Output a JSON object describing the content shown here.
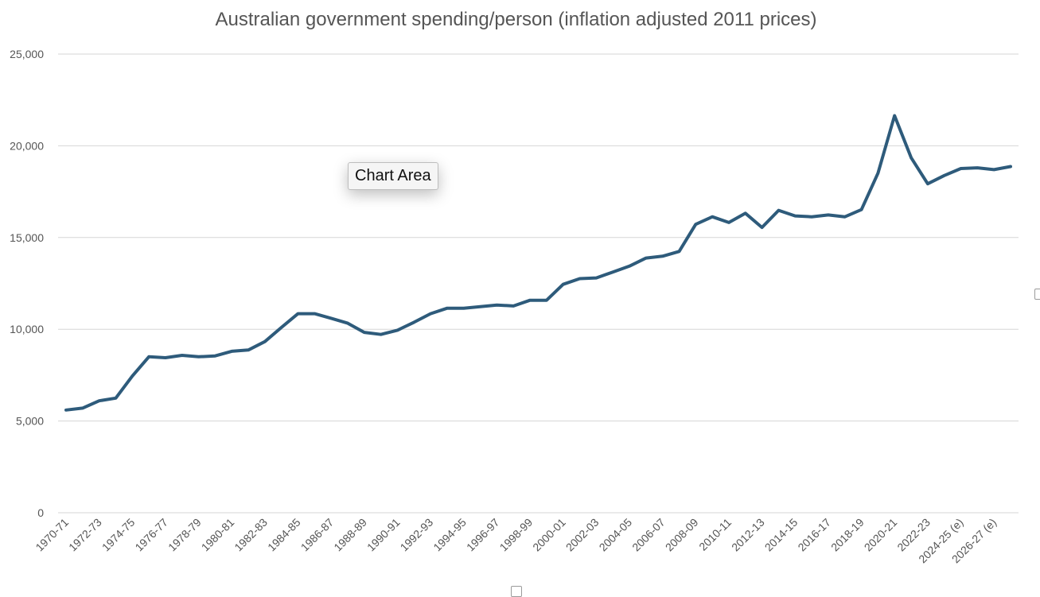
{
  "tooltip": "Chart Area",
  "colors": {
    "line": "#2e5b7b",
    "grid": "#d6d6d6",
    "text": "#555555"
  },
  "chart_data": {
    "type": "line",
    "title": "Australian government spending/person (inflation adjusted 2011 prices)",
    "xlabel": "",
    "ylabel": "",
    "ylim": [
      0,
      25000
    ],
    "yticks": [
      0,
      5000,
      10000,
      15000,
      20000,
      25000
    ],
    "ytick_labels": [
      "0",
      "5,000",
      "10,000",
      "15,000",
      "20,000",
      "25,000"
    ],
    "xtick_labels": [
      "1970-71",
      "1972-73",
      "1974-75",
      "1976-77",
      "1978-79",
      "1980-81",
      "1982-83",
      "1984-85",
      "1986-87",
      "1988-89",
      "1990-91",
      "1992-93",
      "1994-95",
      "1996-97",
      "1998-99",
      "2000-01",
      "2002-03",
      "2004-05",
      "2006-07",
      "2008-09",
      "2010-11",
      "2012-13",
      "2014-15",
      "2016-17",
      "2018-19",
      "2020-21",
      "2022-23",
      "2024-25 (e)",
      "2026-27 (e)"
    ],
    "grid": true,
    "legend": "none",
    "series": [
      {
        "name": "Spending per person",
        "values": [
          5600,
          5700,
          6100,
          6250,
          7450,
          8500,
          8450,
          8580,
          8500,
          8550,
          8800,
          8870,
          9330,
          10100,
          10850,
          10850,
          10600,
          10330,
          9830,
          9720,
          9950,
          10380,
          10850,
          11150,
          11150,
          11230,
          11320,
          11270,
          11580,
          11580,
          12450,
          12760,
          12800,
          13120,
          13440,
          13880,
          13980,
          14240,
          15720,
          16130,
          15820,
          16320,
          15550,
          16480,
          16180,
          16130,
          16230,
          16130,
          16520,
          18510,
          21640,
          19350,
          17930,
          18380,
          18760,
          18800,
          18700,
          18870
        ]
      }
    ]
  }
}
